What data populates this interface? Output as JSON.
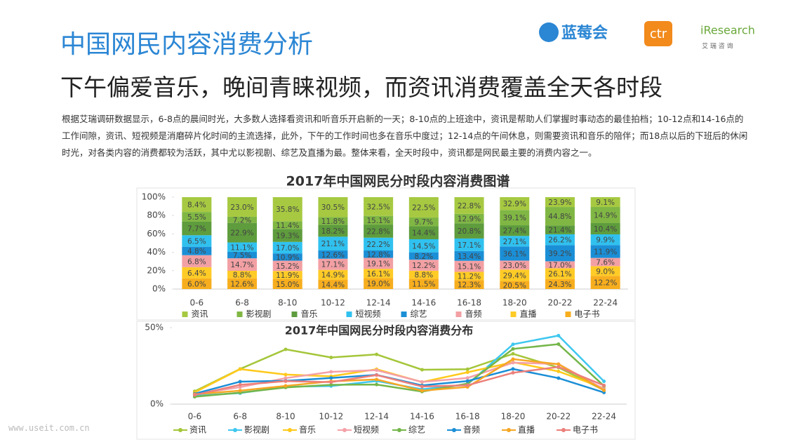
{
  "header": {
    "title": "中国网民内容消费分析",
    "logos": [
      "蓝莓会",
      "ctr",
      "iResearch",
      "艾 瑞 咨 询"
    ]
  },
  "subtitle": "下午偏爱音乐，晚间青睐视频，而资讯消费覆盖全天各时段",
  "body": "根据艾瑞调研数据显示，6-8点的晨间时光，大多数人选择看资讯和听音乐开启新的一天；8-10点的上班途中，资讯是帮助人们掌握时事动态的最佳拍档；10-12点和14-16点的工作间隙，资讯、短视频是消磨碎片化时间的主流选择，此外，下午的工作时间也多在音乐中度过；12-14点的午间休息，则需要资讯和音乐的陪伴；而18点以后的下班后的休闲时光，对各类内容的消费都较为活跃，其中尤以影视剧、综艺及直播为最。整体来看，全天时段中，资讯都是网民最主要的消费内容之一。",
  "watermark": "www.useit.com.cn",
  "chart_data": [
    {
      "type": "bar",
      "stacked": "percent",
      "title": "2017年中国网民分时段内容消费图谱",
      "categories": [
        "0-6",
        "6-8",
        "8-10",
        "10-12",
        "12-14",
        "14-16",
        "16-18",
        "18-20",
        "20-22",
        "22-24"
      ],
      "ylim": [
        0,
        100
      ],
      "yticks": [
        {
          "value": 0,
          "label": "0%"
        },
        {
          "value": 20,
          "label": "20%"
        },
        {
          "value": 40,
          "label": "40%"
        },
        {
          "value": 60,
          "label": "60%"
        },
        {
          "value": 80,
          "label": "80%"
        },
        {
          "value": 100,
          "label": "100%"
        }
      ],
      "legend": "bottom",
      "series": [
        {
          "name": "资讯",
          "color": "#a6c941",
          "values": [
            8.4,
            23,
            35.8,
            30.5,
            32.5,
            22.5,
            22.8,
            32.9,
            23.9,
            9.1
          ],
          "value_labels": [
            "8.4%",
            "23.0%",
            "35.8%",
            "30.5%",
            "32.5%",
            "22.5%",
            "22.8%",
            "32.9%",
            "23.9%",
            "9.1%"
          ]
        },
        {
          "name": "影视剧",
          "color": "#80b744",
          "values": [
            5.5,
            7.2,
            11.4,
            11.8,
            15.1,
            9.7,
            12.9,
            39.1,
            44.8,
            14.9
          ],
          "value_labels": [
            "5.5%",
            "7.2%",
            "11.4%",
            "11.8%",
            "15.1%",
            "9.7%",
            "12.9%",
            "39.1%",
            "44.8%",
            "14.9%"
          ]
        },
        {
          "name": "音乐",
          "color": "#5e9c3d",
          "values": [
            7.7,
            22.9,
            19.3,
            18.2,
            22.8,
            14.4,
            20.8,
            27.4,
            21.4,
            10.4
          ],
          "value_labels": [
            "7.7%",
            "22.9%",
            "19.3%",
            "18.2%",
            "22.8%",
            "14.4%",
            "20.8%",
            "27.4%",
            "21.4%",
            "10.4%"
          ]
        },
        {
          "name": "短视频",
          "color": "#30c1ef",
          "values": [
            6.5,
            11.1,
            17,
            21.1,
            22.2,
            14.5,
            17.1,
            27.1,
            26.2,
            9.9
          ],
          "value_labels": [
            "6.5%",
            "11.1%",
            "17.0%",
            "21.1%",
            "22.2%",
            "14.5%",
            "17.1%",
            "27.1%",
            "26.2%",
            "9.9%"
          ]
        },
        {
          "name": "综艺",
          "color": "#1b8fd6",
          "values": [
            4.8,
            7.5,
            10.9,
            12.6,
            12.8,
            8.2,
            13.4,
            36.1,
            39.2,
            11.9
          ],
          "value_labels": [
            "4.8%",
            "7.5%",
            "10.9%",
            "12.6%",
            "12.8%",
            "8.2%",
            "13.4%",
            "36.1%",
            "39.2%",
            "11.9%"
          ]
        },
        {
          "name": "音频",
          "color": "#f2a0a4",
          "values": [
            6.8,
            14.7,
            15.2,
            17.1,
            19.1,
            12.2,
            15.1,
            23,
            17,
            7.6
          ],
          "value_labels": [
            "6.8%",
            "14.7%",
            "15.2%",
            "17.1%",
            "19.1%",
            "12.2%",
            "15.1%",
            "23.0%",
            "17.0%",
            "7.6%"
          ]
        },
        {
          "name": "直播",
          "color": "#ffcb26",
          "values": [
            6.4,
            8.8,
            11.9,
            14.9,
            16.1,
            8.8,
            11.2,
            29.4,
            26.1,
            9
          ],
          "value_labels": [
            "6.4%",
            "8.8%",
            "11.9%",
            "14.9%",
            "16.1%",
            "8.8%",
            "11.2%",
            "29.4%",
            "26.1%",
            "9.0%"
          ]
        },
        {
          "name": "电子书",
          "color": "#f7ae1e",
          "values": [
            6,
            12.6,
            15,
            14.4,
            19,
            11.5,
            12.3,
            20.5,
            24.3,
            12.2
          ],
          "value_labels": [
            "6.0%",
            "12.6%",
            "15.0%",
            "14.4%",
            "19.0%",
            "11.5%",
            "12.3%",
            "20.5%",
            "24.3%",
            "12.2%"
          ]
        }
      ]
    },
    {
      "type": "line",
      "title": "2017年中国网民分时段内容消费分布",
      "categories": [
        "0-6",
        "6-8",
        "8-10",
        "10-12",
        "12-14",
        "14-16",
        "16-18",
        "18-20",
        "20-22",
        "22-24"
      ],
      "ylim": [
        0,
        50
      ],
      "yticks": [
        {
          "value": 0,
          "label": "0%"
        },
        {
          "value": 50,
          "label": "50%"
        }
      ],
      "legend": "bottom",
      "series": [
        {
          "name": "资讯",
          "color": "#a4c639",
          "values": [
            8.4,
            23,
            35.8,
            30.5,
            32.5,
            22.5,
            22.8,
            32.9,
            23.9,
            9.1
          ]
        },
        {
          "name": "影视剧",
          "color": "#3ec7ef",
          "values": [
            5.5,
            7.2,
            11.4,
            11.8,
            15.1,
            9.7,
            12.9,
            39.1,
            44.8,
            14.9
          ]
        },
        {
          "name": "音乐",
          "color": "#ffc91a",
          "values": [
            7.7,
            22.9,
            19.3,
            18.2,
            22.8,
            14.4,
            20.8,
            27.4,
            21.4,
            10.4
          ]
        },
        {
          "name": "短视频",
          "color": "#f4a1a8",
          "values": [
            6.5,
            11.1,
            17,
            21.1,
            22.2,
            14.5,
            17.1,
            27.1,
            26.2,
            9.9
          ]
        },
        {
          "name": "综艺",
          "color": "#74b64a",
          "values": [
            4.8,
            7.5,
            10.9,
            12.6,
            12.8,
            8.2,
            13.4,
            36.1,
            39.2,
            11.9
          ]
        },
        {
          "name": "音频",
          "color": "#1b8ed6",
          "values": [
            6.8,
            14.7,
            15.2,
            17.1,
            19.1,
            12.2,
            15.1,
            23,
            17,
            7.6
          ]
        },
        {
          "name": "直播",
          "color": "#f6a623",
          "values": [
            6.4,
            8.8,
            11.9,
            14.9,
            16.1,
            8.8,
            11.2,
            29.4,
            26.1,
            9
          ]
        },
        {
          "name": "电子书",
          "color": "#ec7f7a",
          "values": [
            6,
            12.6,
            15,
            14.4,
            19,
            11.5,
            12.3,
            20.5,
            24.3,
            12.2
          ]
        }
      ]
    }
  ]
}
